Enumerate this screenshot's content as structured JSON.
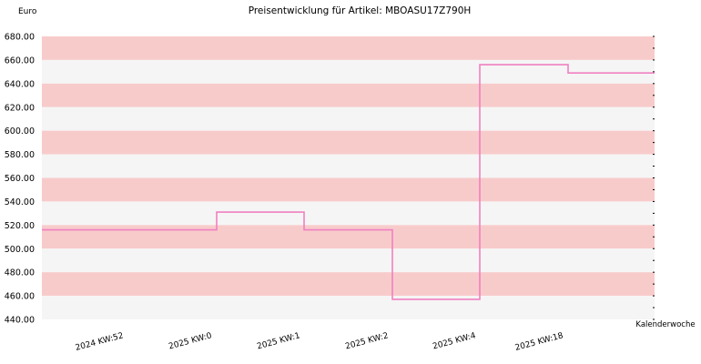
{
  "chart_data": {
    "type": "line",
    "step": "post",
    "title": "Preisentwicklung für Artikel: MBOASU17Z790H",
    "ylabel": "Euro",
    "xlabel": "Kalenderwoche",
    "ylim": [
      440,
      680
    ],
    "yticks": [
      "680.00",
      "660.00",
      "640.00",
      "620.00",
      "600.00",
      "580.00",
      "560.00",
      "540.00",
      "520.00",
      "500.00",
      "480.00",
      "460.00",
      "440.00"
    ],
    "categories": [
      "2024 KW:52",
      "2025 KW:0",
      "2025 KW:1",
      "2025 KW:2",
      "2025 KW:4",
      "2025 KW:18",
      ""
    ],
    "series": [
      {
        "values": [
          516,
          531,
          516,
          457,
          656,
          649,
          649
        ]
      }
    ],
    "grid": true,
    "band_colors": [
      "#f8cbcb",
      "#f5f5f5"
    ],
    "line_color": "#f080c0"
  }
}
